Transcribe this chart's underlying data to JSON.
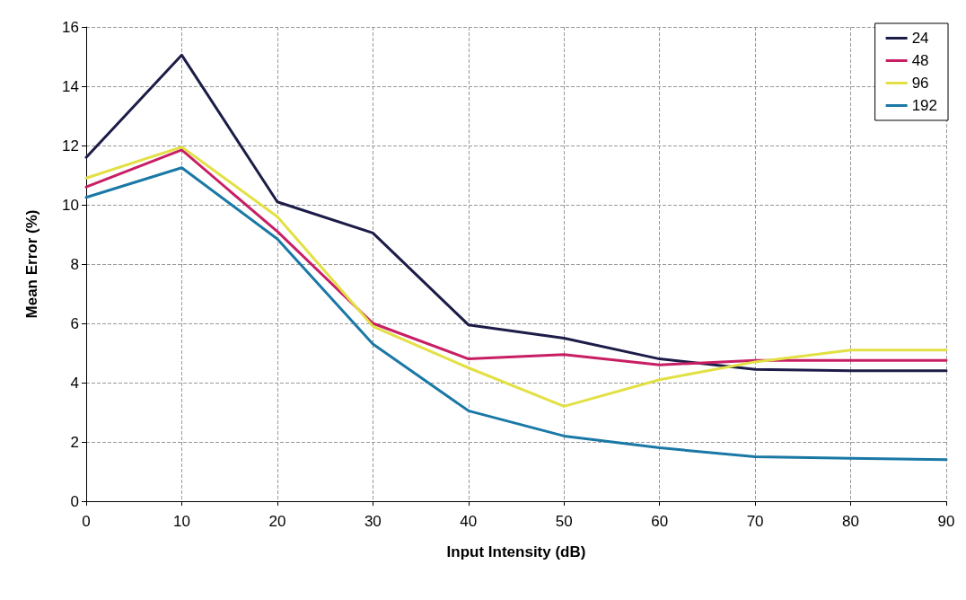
{
  "chart_data": {
    "type": "line",
    "xlabel": "Input Intensity (dB)",
    "ylabel": "Mean Error (%)",
    "x": [
      0,
      10,
      20,
      30,
      40,
      50,
      60,
      70,
      80,
      90
    ],
    "series": [
      {
        "name": "24",
        "color": "#1c1c48",
        "values": [
          11.6,
          15.05,
          10.1,
          9.05,
          5.95,
          5.5,
          4.8,
          4.45,
          4.4,
          4.4
        ]
      },
      {
        "name": "48",
        "color": "#c81e64",
        "values": [
          10.6,
          11.85,
          9.1,
          6.0,
          4.8,
          4.95,
          4.6,
          4.75,
          4.75,
          4.75
        ]
      },
      {
        "name": "96",
        "color": "#e2e044",
        "values": [
          10.9,
          11.95,
          9.6,
          5.9,
          4.5,
          3.2,
          4.1,
          4.7,
          5.1,
          5.1
        ]
      },
      {
        "name": "192",
        "color": "#1a78a6",
        "values": [
          10.25,
          11.25,
          8.85,
          5.3,
          3.05,
          2.2,
          1.8,
          1.5,
          1.45,
          1.4
        ]
      }
    ],
    "xlim": [
      0,
      90
    ],
    "xticks": [
      0,
      10,
      20,
      30,
      40,
      50,
      60,
      70,
      80,
      90
    ],
    "ylim": [
      0,
      16
    ],
    "yticks": [
      0,
      2,
      4,
      6,
      8,
      10,
      12,
      14,
      16
    ],
    "grid": true,
    "legend": "top right",
    "marker": "none",
    "line_style": "solid"
  }
}
